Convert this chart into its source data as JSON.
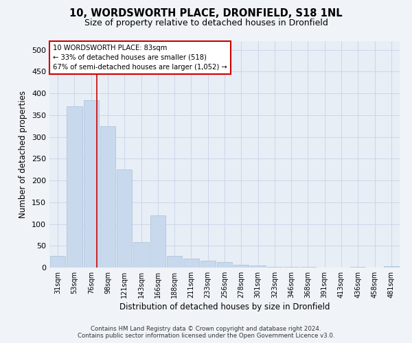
{
  "title": "10, WORDSWORTH PLACE, DRONFIELD, S18 1NL",
  "subtitle": "Size of property relative to detached houses in Dronfield",
  "xlabel": "Distribution of detached houses by size in Dronfield",
  "ylabel": "Number of detached properties",
  "footer1": "Contains HM Land Registry data © Crown copyright and database right 2024.",
  "footer2": "Contains public sector information licensed under the Open Government Licence v3.0.",
  "bar_labels": [
    "31sqm",
    "53sqm",
    "76sqm",
    "98sqm",
    "121sqm",
    "143sqm",
    "166sqm",
    "188sqm",
    "211sqm",
    "233sqm",
    "256sqm",
    "278sqm",
    "301sqm",
    "323sqm",
    "346sqm",
    "368sqm",
    "391sqm",
    "413sqm",
    "436sqm",
    "458sqm",
    "481sqm"
  ],
  "bar_values": [
    27,
    370,
    385,
    325,
    225,
    58,
    120,
    27,
    20,
    15,
    12,
    6,
    4,
    2,
    1,
    1,
    0,
    0,
    1,
    0,
    3
  ],
  "bar_color": "#c8d9ed",
  "bar_edge_color": "#a8bfd6",
  "grid_color": "#ccd6e8",
  "background_color": "#e8eef6",
  "fig_background_color": "#f0f4f8",
  "property_line_x": 2.35,
  "property_line_color": "#cc0000",
  "annotation_text": "10 WORDSWORTH PLACE: 83sqm\n← 33% of detached houses are smaller (518)\n67% of semi-detached houses are larger (1,052) →",
  "annotation_box_facecolor": "#ffffff",
  "annotation_box_edgecolor": "#cc0000",
  "ylim": [
    0,
    520
  ],
  "yticks": [
    0,
    50,
    100,
    150,
    200,
    250,
    300,
    350,
    400,
    450,
    500
  ]
}
